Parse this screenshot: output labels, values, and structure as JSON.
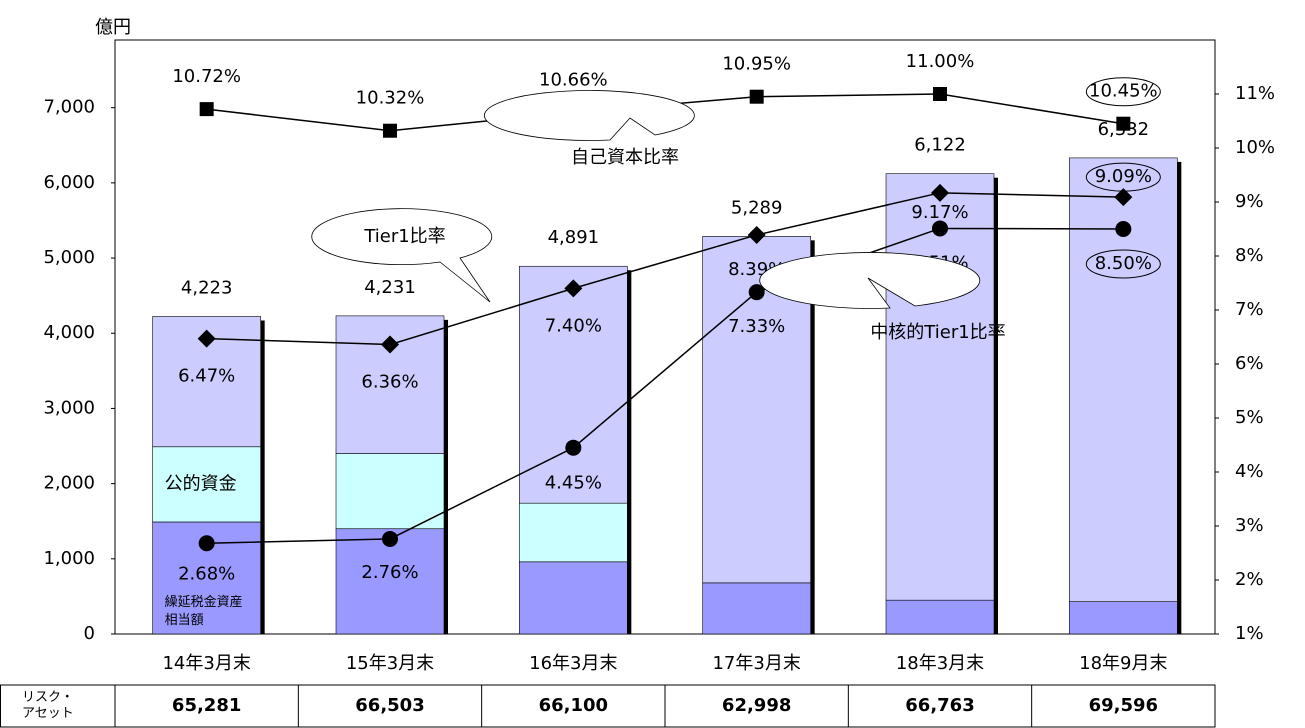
{
  "chart_data": {
    "type": "bar-line",
    "y_unit": "億円",
    "categories": [
      "14年3月末",
      "15年3月末",
      "16年3月末",
      "17年3月末",
      "18年3月末",
      "18年9月末"
    ],
    "ylim": [
      0,
      7900
    ],
    "yticks": [
      0,
      {
        "value": 1000,
        "label": "1,000"
      },
      {
        "value": 2000,
        "label": "2,000"
      },
      {
        "value": 3000,
        "label": "3,000"
      },
      {
        "value": 4000,
        "label": "4,000"
      },
      {
        "value": 5000,
        "label": "5,000"
      },
      {
        "value": 6000,
        "label": "6,000"
      },
      {
        "value": 7000,
        "label": "7,000"
      }
    ],
    "y2lim": [
      1,
      12
    ],
    "y2ticks": [
      {
        "value": 1,
        "label": "1%"
      },
      {
        "value": 2,
        "label": "2%"
      },
      {
        "value": 3,
        "label": "3%"
      },
      {
        "value": 4,
        "label": "4%"
      },
      {
        "value": 5,
        "label": "5%"
      },
      {
        "value": 6,
        "label": "6%"
      },
      {
        "value": 7,
        "label": "7%"
      },
      {
        "value": 8,
        "label": "8%"
      },
      {
        "value": 9,
        "label": "9%"
      },
      {
        "value": 10,
        "label": "10%"
      },
      {
        "value": 11,
        "label": "11%"
      }
    ],
    "stacks": [
      {
        "name": "繰延税金資産相当額",
        "color": "#9999ff",
        "values": [
          1490,
          1400,
          960,
          680,
          450,
          430
        ]
      },
      {
        "name": "公的資金",
        "color": "#ccffff",
        "values": [
          1000,
          1000,
          780,
          0,
          0,
          0
        ]
      },
      {
        "color": "#ccccff",
        "values": [
          1733,
          1831,
          3151,
          4609,
          5672,
          5902
        ]
      }
    ],
    "totals": {
      "values": [
        4223,
        4231,
        4891,
        5289,
        6122,
        6332
      ],
      "value_labels": [
        "4,223",
        "4,231",
        "4,891",
        "5,289",
        "6,122",
        "6,332"
      ]
    },
    "series": [
      {
        "name": "自己資本比率",
        "axis": "y2",
        "marker": "square",
        "color": "#000000",
        "values": [
          10.72,
          10.32,
          10.66,
          10.95,
          11.0,
          10.45
        ],
        "value_labels": [
          "10.72%",
          "10.32%",
          "10.66%",
          "10.95%",
          "11.00%",
          "10.45%"
        ]
      },
      {
        "name": "Tier1比率",
        "axis": "y2",
        "marker": "diamond",
        "color": "#000000",
        "values": [
          6.47,
          6.36,
          7.4,
          8.39,
          9.17,
          9.09
        ],
        "value_labels": [
          "6.47%",
          "6.36%",
          "7.40%",
          "8.39%",
          "9.17%",
          "9.09%"
        ]
      },
      {
        "name": "中核的Tier1比率",
        "axis": "y2",
        "marker": "circle",
        "color": "#000000",
        "values": [
          2.68,
          2.76,
          4.45,
          7.33,
          8.51,
          8.5
        ],
        "value_labels": [
          "2.68%",
          "2.76%",
          "4.45%",
          "7.33%",
          "8.51%",
          "8.50%"
        ]
      }
    ],
    "risk_assets": {
      "label": "リスク・アセット",
      "values": [
        65281,
        66503,
        66100,
        62998,
        66763,
        69596
      ],
      "value_labels": [
        "65,281",
        "66,503",
        "66,100",
        "62,998",
        "66,763",
        "69,596"
      ]
    }
  }
}
